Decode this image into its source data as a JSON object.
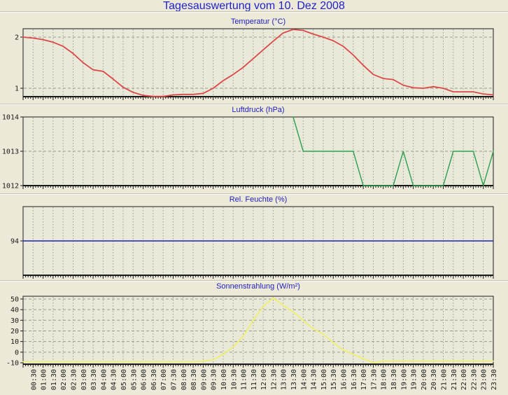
{
  "page": {
    "title": "Tagesauswertung vom 10. Dez 2008"
  },
  "colors": {
    "page_bg": "#ece9d8",
    "plot_bg": "#e9e9da",
    "axis": "#1a1a1a",
    "grid": "#9b9a8b",
    "separator_dark": "#c6c3b3",
    "separator_light": "#ffffff",
    "main_title": "#2222cc",
    "chart_title": "#2222bb",
    "temperature_line": "#dd4848",
    "pressure_line": "#2da050",
    "humidity_line": "#2222aa",
    "solar_line": "#f0ee6f"
  },
  "x_axis": {
    "start": "00:00",
    "interval_minutes": 30,
    "labels": [
      "00:30",
      "01:00",
      "01:30",
      "02:00",
      "02:30",
      "03:00",
      "03:30",
      "04:00",
      "04:30",
      "05:00",
      "05:30",
      "06:00",
      "06:30",
      "07:00",
      "07:30",
      "08:00",
      "08:30",
      "09:00",
      "09:30",
      "10:00",
      "10:30",
      "11:00",
      "11:30",
      "12:00",
      "12:30",
      "13:00",
      "13:30",
      "14:00",
      "14:30",
      "15:00",
      "15:30",
      "16:00",
      "16:30",
      "17:00",
      "17:30",
      "18:00",
      "18:30",
      "19:00",
      "19:30",
      "20:00",
      "20:30",
      "21:00",
      "21:30",
      "22:00",
      "22:30",
      "23:00",
      "23:30"
    ]
  },
  "chart_data": [
    {
      "id": "temperatur",
      "type": "line",
      "title": "Temperatur (°C)",
      "ylabel": "°C",
      "color": "#dd4848",
      "ylim": [
        0.836,
        2.164
      ],
      "yticks": [
        2,
        1
      ],
      "start_time": "00:00",
      "start_index": 0,
      "interval_minutes": 30,
      "values": [
        2.0,
        1.98,
        1.95,
        1.9,
        1.82,
        1.68,
        1.5,
        1.36,
        1.33,
        1.18,
        1.02,
        0.92,
        0.86,
        0.84,
        0.84,
        0.87,
        0.88,
        0.88,
        0.9,
        1.0,
        1.15,
        1.27,
        1.41,
        1.58,
        1.75,
        1.92,
        2.08,
        2.15,
        2.13,
        2.06,
        2.0,
        1.93,
        1.82,
        1.65,
        1.45,
        1.27,
        1.19,
        1.17,
        1.06,
        1.01,
        1.0,
        1.03,
        1.0,
        0.93,
        0.93,
        0.93,
        0.89,
        0.87
      ]
    },
    {
      "id": "luftdruck",
      "type": "line",
      "title": "Luftdruck (hPa)",
      "ylabel": "hPa",
      "color": "#2da050",
      "ylim": [
        1012,
        1014
      ],
      "yticks": [
        1014,
        1013,
        1012
      ],
      "start_time": "13:30",
      "start_index": 27,
      "interval_minutes": 30,
      "values": [
        1014,
        1013,
        1013,
        1013,
        1013,
        1013,
        1013,
        1012,
        1012,
        1012,
        1012,
        1013,
        1012,
        1012,
        1012,
        1012,
        1013,
        1013,
        1013,
        1012,
        1013
      ]
    },
    {
      "id": "feuchte",
      "type": "line",
      "title": "Rel. Feuchte (%)",
      "ylabel": "%",
      "color": "#2222aa",
      "ylim": [
        93,
        95
      ],
      "yticks": [
        94
      ],
      "start_time": "00:00",
      "start_index": 0,
      "interval_minutes": 30,
      "values": [
        94,
        94,
        94,
        94,
        94,
        94,
        94,
        94,
        94,
        94,
        94,
        94,
        94,
        94,
        94,
        94,
        94,
        94,
        94,
        94,
        94,
        94,
        94,
        94,
        94,
        94,
        94,
        94,
        94,
        94,
        94,
        94,
        94,
        94,
        94,
        94,
        94,
        94,
        94,
        94,
        94,
        94,
        94,
        94,
        94,
        94,
        94,
        94
      ]
    },
    {
      "id": "sonnenstrahlung",
      "type": "line",
      "title": "Sonnenstrahlung (W/m²)",
      "ylabel": "W/m²",
      "color": "#f0ee6f",
      "ylim": [
        -11.3,
        52.6
      ],
      "yticks": [
        50,
        40,
        30,
        20,
        10,
        0,
        -10
      ],
      "start_time": "00:00",
      "start_index": 0,
      "interval_minutes": 30,
      "values": [
        -9,
        -9,
        -9,
        -9,
        -9,
        -9,
        -9,
        -9,
        -9,
        -9,
        -9,
        -9,
        -9,
        -9,
        -9,
        -9,
        -9,
        -9,
        -8.5,
        -7,
        -2,
        5,
        15,
        30,
        43,
        51,
        44,
        38,
        30,
        22,
        17,
        9,
        2,
        -2,
        -6,
        -10,
        -8.5,
        -8.5,
        -8.5,
        -8.5,
        -8.5,
        -8.5,
        -8.5,
        -8.5,
        -8.5,
        -8.5,
        -8.5,
        -8.5
      ]
    }
  ]
}
